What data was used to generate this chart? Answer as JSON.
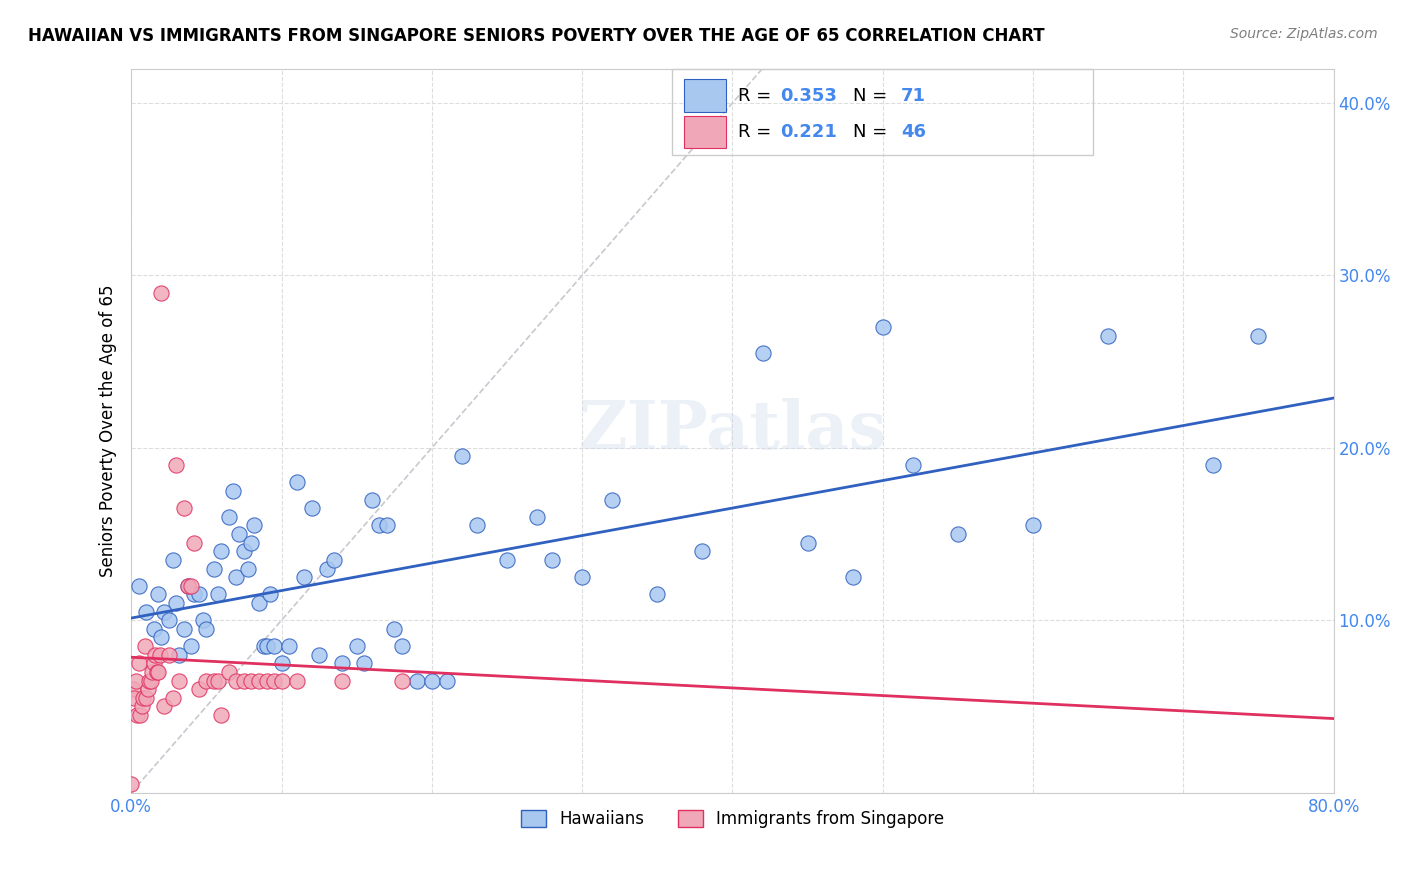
{
  "title": "HAWAIIAN VS IMMIGRANTS FROM SINGAPORE SENIORS POVERTY OVER THE AGE OF 65 CORRELATION CHART",
  "source": "Source: ZipAtlas.com",
  "xlabel": "",
  "ylabel": "Seniors Poverty Over the Age of 65",
  "xlim": [
    0.0,
    0.8
  ],
  "ylim": [
    0.0,
    0.42
  ],
  "xticks": [
    0.0,
    0.1,
    0.2,
    0.3,
    0.4,
    0.5,
    0.6,
    0.7,
    0.8
  ],
  "xticklabels": [
    "0.0%",
    "",
    "",
    "",
    "",
    "",
    "",
    "",
    "80.0%"
  ],
  "yticks": [
    0.0,
    0.1,
    0.2,
    0.3,
    0.4
  ],
  "yticklabels": [
    "",
    "10.0%",
    "20.0%",
    "30.0%",
    "40.0%"
  ],
  "legend1_label": "Hawaiians",
  "legend2_label": "Immigrants from Singapore",
  "R_hawaiians": 0.353,
  "N_hawaiians": 71,
  "R_singapore": 0.221,
  "N_singapore": 46,
  "color_hawaiians": "#a8c8f0",
  "color_singapore": "#f0a8b8",
  "line_color_hawaiians": "#3060c0",
  "line_color_singapore": "#e03060",
  "diagonal_color": "#c8c8d0",
  "watermark": "ZIPatlas",
  "hawaiians_x": [
    0.005,
    0.01,
    0.015,
    0.018,
    0.02,
    0.022,
    0.025,
    0.028,
    0.03,
    0.032,
    0.035,
    0.038,
    0.04,
    0.042,
    0.045,
    0.048,
    0.05,
    0.055,
    0.058,
    0.06,
    0.065,
    0.068,
    0.07,
    0.072,
    0.075,
    0.078,
    0.08,
    0.082,
    0.085,
    0.088,
    0.09,
    0.092,
    0.095,
    0.1,
    0.105,
    0.11,
    0.115,
    0.12,
    0.125,
    0.13,
    0.135,
    0.14,
    0.15,
    0.155,
    0.16,
    0.165,
    0.17,
    0.175,
    0.18,
    0.19,
    0.2,
    0.21,
    0.22,
    0.23,
    0.25,
    0.27,
    0.28,
    0.3,
    0.32,
    0.35,
    0.38,
    0.42,
    0.45,
    0.48,
    0.5,
    0.52,
    0.55,
    0.6,
    0.65,
    0.72,
    0.75
  ],
  "hawaiians_y": [
    0.12,
    0.105,
    0.095,
    0.115,
    0.09,
    0.105,
    0.1,
    0.135,
    0.11,
    0.08,
    0.095,
    0.12,
    0.085,
    0.115,
    0.115,
    0.1,
    0.095,
    0.13,
    0.115,
    0.14,
    0.16,
    0.175,
    0.125,
    0.15,
    0.14,
    0.13,
    0.145,
    0.155,
    0.11,
    0.085,
    0.085,
    0.115,
    0.085,
    0.075,
    0.085,
    0.18,
    0.125,
    0.165,
    0.08,
    0.13,
    0.135,
    0.075,
    0.085,
    0.075,
    0.17,
    0.155,
    0.155,
    0.095,
    0.085,
    0.065,
    0.065,
    0.065,
    0.195,
    0.155,
    0.135,
    0.16,
    0.135,
    0.125,
    0.17,
    0.115,
    0.14,
    0.255,
    0.145,
    0.125,
    0.27,
    0.19,
    0.15,
    0.155,
    0.265,
    0.19,
    0.265
  ],
  "singapore_x": [
    0.0,
    0.001,
    0.002,
    0.003,
    0.004,
    0.005,
    0.006,
    0.007,
    0.008,
    0.009,
    0.01,
    0.011,
    0.012,
    0.013,
    0.014,
    0.015,
    0.016,
    0.017,
    0.018,
    0.019,
    0.02,
    0.022,
    0.025,
    0.028,
    0.03,
    0.032,
    0.035,
    0.038,
    0.04,
    0.042,
    0.045,
    0.05,
    0.055,
    0.058,
    0.06,
    0.065,
    0.07,
    0.075,
    0.08,
    0.085,
    0.09,
    0.095,
    0.1,
    0.11,
    0.14,
    0.18
  ],
  "singapore_y": [
    0.005,
    0.06,
    0.055,
    0.065,
    0.045,
    0.075,
    0.045,
    0.05,
    0.055,
    0.085,
    0.055,
    0.06,
    0.065,
    0.065,
    0.07,
    0.075,
    0.08,
    0.07,
    0.07,
    0.08,
    0.29,
    0.05,
    0.08,
    0.055,
    0.19,
    0.065,
    0.165,
    0.12,
    0.12,
    0.145,
    0.06,
    0.065,
    0.065,
    0.065,
    0.045,
    0.07,
    0.065,
    0.065,
    0.065,
    0.065,
    0.065,
    0.065,
    0.065,
    0.065,
    0.065,
    0.065
  ]
}
